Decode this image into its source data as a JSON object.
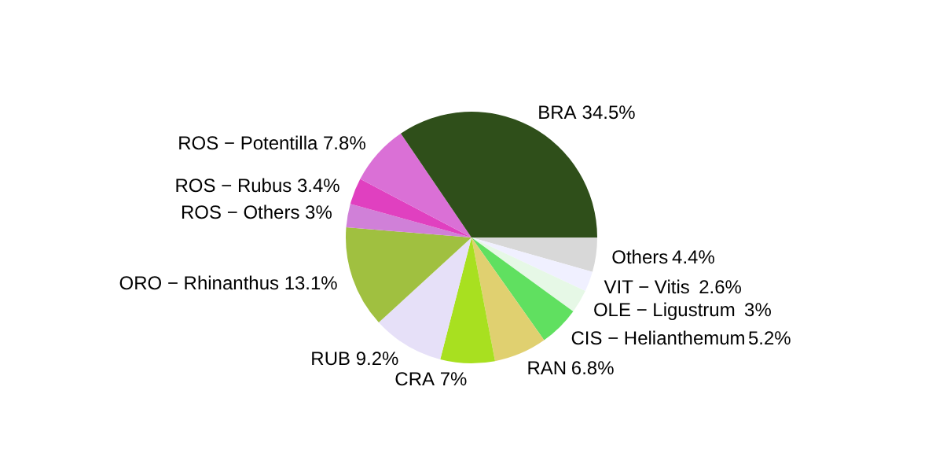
{
  "chart_data": {
    "type": "pie",
    "categories": [
      "BRA",
      "ROS − Potentilla",
      "ROS − Rubus",
      "ROS − Others",
      "ORO − Rhinanthus",
      "RUB",
      "CRA",
      "RAN",
      "CIS − Helianthemum",
      "OLE − Ligustrum",
      "VIT − Vitis",
      "Others"
    ],
    "values": [
      34.5,
      7.8,
      3.4,
      3,
      13.1,
      9.2,
      7,
      6.8,
      5.2,
      3,
      2.6,
      4.4
    ],
    "colors": [
      "#2f4f1a",
      "#da70d6",
      "#e040c0",
      "#d080d8",
      "#a0c040",
      "#e6e0f8",
      "#a8e020",
      "#e0d070",
      "#60e060",
      "#e6f8e6",
      "#f0f0ff",
      "#d8d8d8"
    ],
    "value_labels": [
      "34.5%",
      "7.8%",
      "3.4%",
      "3%",
      "13.1%",
      "9.2%",
      "7%",
      "6.8%",
      "5.2%",
      "3%",
      "2.6%",
      "4.4%"
    ]
  }
}
